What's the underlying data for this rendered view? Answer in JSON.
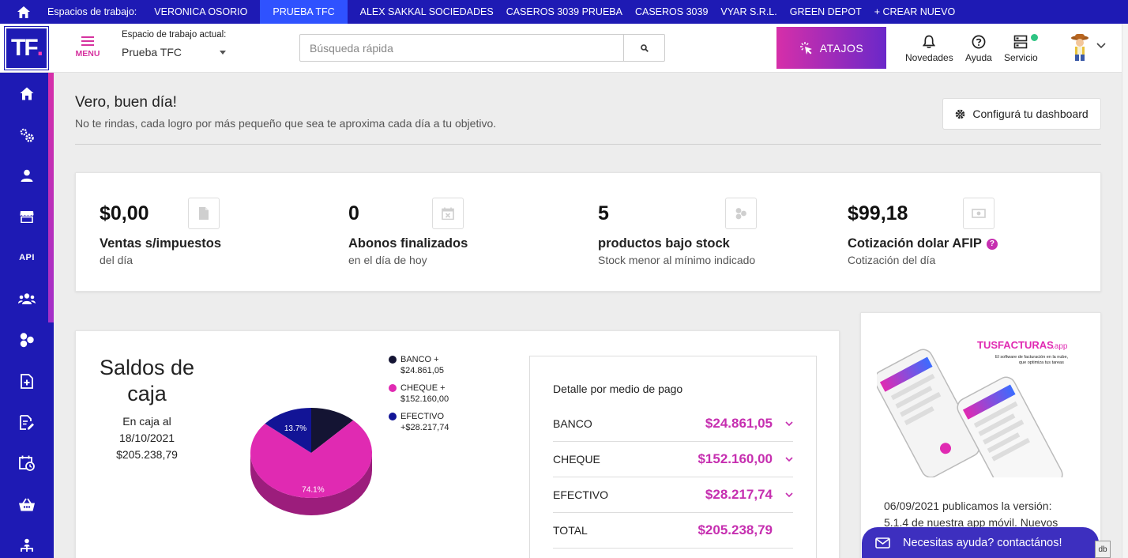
{
  "workspaces": {
    "label": "Espacios de trabajo:",
    "items": [
      "VERONICA OSORIO",
      "PRUEBA TFC",
      "ALEX SAKKAL SOCIEDADES",
      "CASEROS 3039 PRUEBA",
      "CASEROS 3039",
      "VYAR S.R.L.",
      "GREEN DEPOT"
    ],
    "active": "PRUEBA TFC",
    "create_new": "+ CREAR NUEVO"
  },
  "header": {
    "logo_text": "TF",
    "logo_dot": ".",
    "menu_label": "MENU",
    "current_ws_title": "Espacio de trabajo actual:",
    "current_ws_value": "Prueba TFC",
    "search_placeholder": "Búsqueda rápida",
    "atajos_label": "ATAJOS",
    "novedades_label": "Novedades",
    "ayuda_label": "Ayuda",
    "servicio_label": "Servicio"
  },
  "sidebar": {
    "api_label": "API"
  },
  "greeting": {
    "title": "Vero, buen día!",
    "subtitle": "No te rindas, cada logro por más pequeño que sea te aproxima cada día a tu objetivo.",
    "config_button": "Configurá tu dashboard"
  },
  "stats": [
    {
      "value": "$0,00",
      "title": "Ventas s/impuestos",
      "subtitle": "del día",
      "icon": "file-icon"
    },
    {
      "value": "0",
      "title": "Abonos finalizados",
      "subtitle": "en el día de hoy",
      "icon": "calendar-x-icon"
    },
    {
      "value": "5",
      "title": "productos bajo stock",
      "subtitle": "Stock menor al mínimo indicado",
      "icon": "circles-icon"
    },
    {
      "value": "$99,18",
      "title": "Cotización dolar AFIP",
      "subtitle": "Cotización del día",
      "icon": "money-icon",
      "help": "?"
    }
  ],
  "caja": {
    "title_line1": "Saldos de",
    "title_line2": "caja",
    "info_line1": "En caja al",
    "info_line2": "18/10/2021",
    "info_line3": "$205.238,79",
    "legend": [
      {
        "line1": "BANCO +",
        "line2": "$24.861,05",
        "color": "#141433"
      },
      {
        "line1": "CHEQUE +",
        "line2": "$152.160,00",
        "color": "#e02ab2"
      },
      {
        "line1": "EFECTIVO",
        "line2": "+$28.217,74",
        "color": "#121496"
      }
    ],
    "pie_labels": {
      "cheque": "74.1%",
      "efectivo": "13.7%"
    }
  },
  "chart_data": {
    "type": "pie",
    "categories": [
      "BANCO",
      "CHEQUE",
      "EFECTIVO"
    ],
    "values": [
      24861.05,
      152160.0,
      28217.74
    ],
    "percent_labels": [
      "",
      "74.1%",
      "13.7%"
    ],
    "colors": [
      "#141433",
      "#e02ab2",
      "#121496"
    ],
    "title": "Saldos de caja",
    "legend": "top-right"
  },
  "detalle": {
    "title": "Detalle por medio de pago",
    "rows": [
      {
        "name": "BANCO",
        "value": "$24.861,05"
      },
      {
        "name": "CHEQUE",
        "value": "$152.160,00"
      },
      {
        "name": "EFECTIVO",
        "value": "$28.217,74"
      },
      {
        "name": "TOTAL",
        "value": "$205.238,79"
      }
    ]
  },
  "promo": {
    "brand": "TUSFACTURAS",
    "brand_suffix": ".app",
    "tagline1": "El software de facturación en la nube,",
    "tagline2": "que optimiza tus tareas",
    "text_line1": "06/09/2021 publicamos la versión:",
    "text_line2": "5.1.4 de nuestra app móvil. Nuevos"
  },
  "help_chat": {
    "label": "Necesitas ayuda? contactános!"
  },
  "db_tag": "db"
}
